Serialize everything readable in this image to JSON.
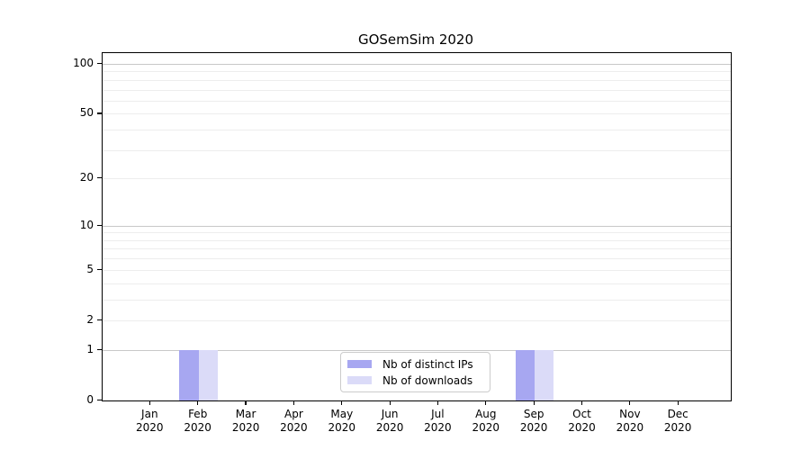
{
  "chart_data": {
    "type": "bar",
    "title": "GOSemSim 2020",
    "categories": [
      "Jan 2020",
      "Feb 2020",
      "Mar 2020",
      "Apr 2020",
      "May 2020",
      "Jun 2020",
      "Jul 2020",
      "Aug 2020",
      "Sep 2020",
      "Oct 2020",
      "Nov 2020",
      "Dec 2020"
    ],
    "series": [
      {
        "name": "Nb of distinct IPs",
        "color": "#a7a7f1",
        "values": [
          0,
          1,
          0,
          0,
          0,
          0,
          0,
          0,
          1,
          0,
          0,
          0
        ]
      },
      {
        "name": "Nb of downloads",
        "color": "#dbdbf8",
        "values": [
          0,
          1,
          0,
          0,
          0,
          0,
          0,
          0,
          1,
          0,
          0,
          0
        ]
      }
    ],
    "xlabel": "",
    "ylabel": "",
    "yscale": "log1p",
    "ylim": [
      0,
      116
    ],
    "yticks": [
      0,
      1,
      2,
      5,
      10,
      20,
      50,
      100
    ],
    "major_gridlines": [
      1,
      10,
      100
    ],
    "minor_gridlines": [
      2,
      3,
      4,
      5,
      6,
      7,
      8,
      9,
      20,
      30,
      40,
      50,
      60,
      70,
      80,
      90
    ],
    "grid": true,
    "legend_position": "lower-center-inside"
  }
}
